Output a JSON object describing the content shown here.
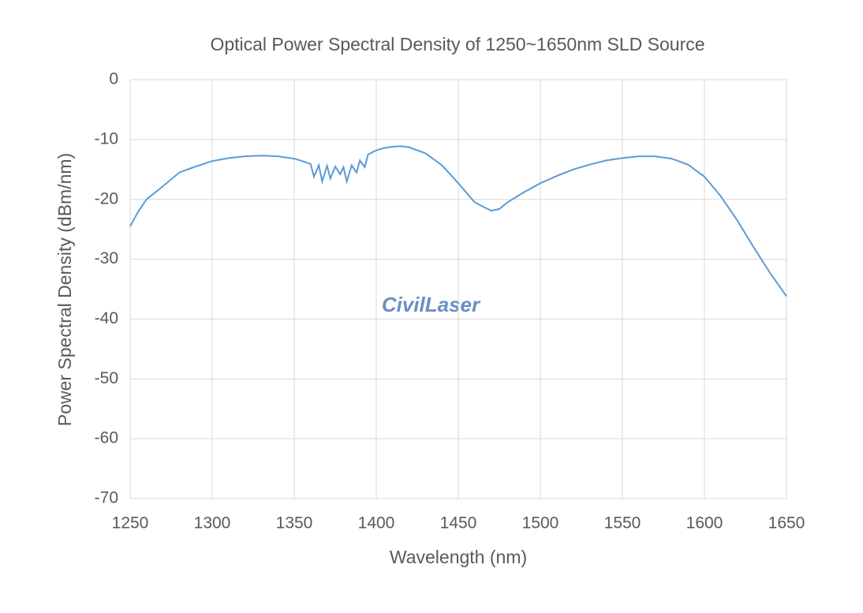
{
  "chart_data": {
    "type": "line",
    "title": "Optical Power Spectral Density of 1250~1650nm SLD Source",
    "x_label": "Wavelength (nm)",
    "y_label": "Power Spectral Density (dBm/nm)",
    "watermark": "CivilLaser",
    "x": [
      1250,
      1255,
      1260,
      1270,
      1280,
      1290,
      1300,
      1310,
      1320,
      1330,
      1340,
      1350,
      1355,
      1360,
      1362,
      1365,
      1367,
      1370,
      1372,
      1375,
      1378,
      1380,
      1382,
      1385,
      1388,
      1390,
      1393,
      1395,
      1400,
      1405,
      1410,
      1415,
      1420,
      1430,
      1440,
      1450,
      1460,
      1470,
      1475,
      1480,
      1490,
      1500,
      1510,
      1520,
      1530,
      1540,
      1550,
      1560,
      1570,
      1580,
      1590,
      1600,
      1610,
      1620,
      1630,
      1640,
      1650
    ],
    "series": [
      {
        "name": "PSD",
        "color": "#5b9bd5",
        "values": [
          -24.5,
          -22,
          -20,
          -17.8,
          -15.5,
          -14.5,
          -13.6,
          -13.1,
          -12.8,
          -12.7,
          -12.8,
          -13.2,
          -13.6,
          -14.1,
          -16.2,
          -14.3,
          -17,
          -14.4,
          -16.5,
          -14.5,
          -15.8,
          -14.6,
          -17,
          -14.3,
          -15.5,
          -13.5,
          -14.6,
          -12.5,
          -11.8,
          -11.4,
          -11.2,
          -11.1,
          -11.3,
          -12.3,
          -14.3,
          -17.3,
          -20.5,
          -21.9,
          -21.6,
          -20.5,
          -18.8,
          -17.3,
          -16.1,
          -15.0,
          -14.2,
          -13.5,
          -13.1,
          -12.8,
          -12.8,
          -13.2,
          -14.2,
          -16.2,
          -19.5,
          -23.5,
          -28,
          -32.3,
          -36.2
        ]
      }
    ],
    "xlim": [
      1250,
      1650
    ],
    "xticks": [
      1250,
      1300,
      1350,
      1400,
      1450,
      1500,
      1550,
      1600,
      1650
    ],
    "ylim": [
      -70,
      0
    ],
    "yticks": [
      -70,
      -60,
      -50,
      -40,
      -30,
      -20,
      -10,
      0
    ],
    "grid": true
  }
}
